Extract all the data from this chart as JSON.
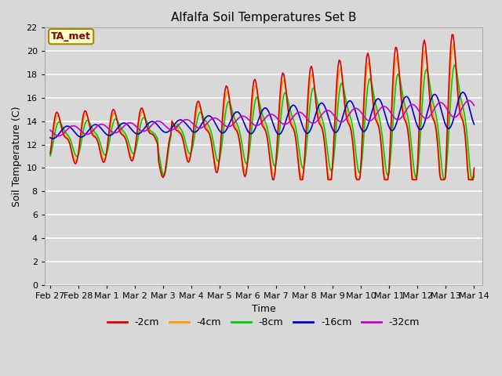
{
  "title": "Alfalfa Soil Temperatures Set B",
  "xlabel": "Time",
  "ylabel": "Soil Temperature (C)",
  "ylim": [
    0,
    22
  ],
  "yticks": [
    0,
    2,
    4,
    6,
    8,
    10,
    12,
    14,
    16,
    18,
    20,
    22
  ],
  "xtick_labels": [
    "Feb 27",
    "Feb 28",
    "Mar 1",
    "Mar 2",
    "Mar 3",
    "Mar 4",
    "Mar 5",
    "Mar 6",
    "Mar 7",
    "Mar 8",
    "Mar 9",
    "Mar 10",
    "Mar 11",
    "Mar 12",
    "Mar 13",
    "Mar 14"
  ],
  "xtick_positions": [
    0,
    1,
    2,
    3,
    4,
    5,
    6,
    7,
    8,
    9,
    10,
    11,
    12,
    13,
    14,
    15
  ],
  "series": {
    "-2cm": {
      "color": "#dd0000",
      "label": "-2cm"
    },
    "-4cm": {
      "color": "#ff9900",
      "label": "-4cm"
    },
    "-8cm": {
      "color": "#00cc00",
      "label": "-8cm"
    },
    "-16cm": {
      "color": "#0000cc",
      "label": "-16cm"
    },
    "-32cm": {
      "color": "#cc00cc",
      "label": "-32cm"
    }
  },
  "bg_color": "#d8d8d8",
  "plot_bg": "#d8d8d8",
  "grid_color": "#ffffff",
  "annotation_text": "TA_met",
  "annotation_bg": "#ffffcc",
  "annotation_border": "#aa8800",
  "title_fontsize": 11,
  "axis_fontsize": 9,
  "tick_fontsize": 8,
  "legend_fontsize": 9,
  "linewidth": 1.2
}
